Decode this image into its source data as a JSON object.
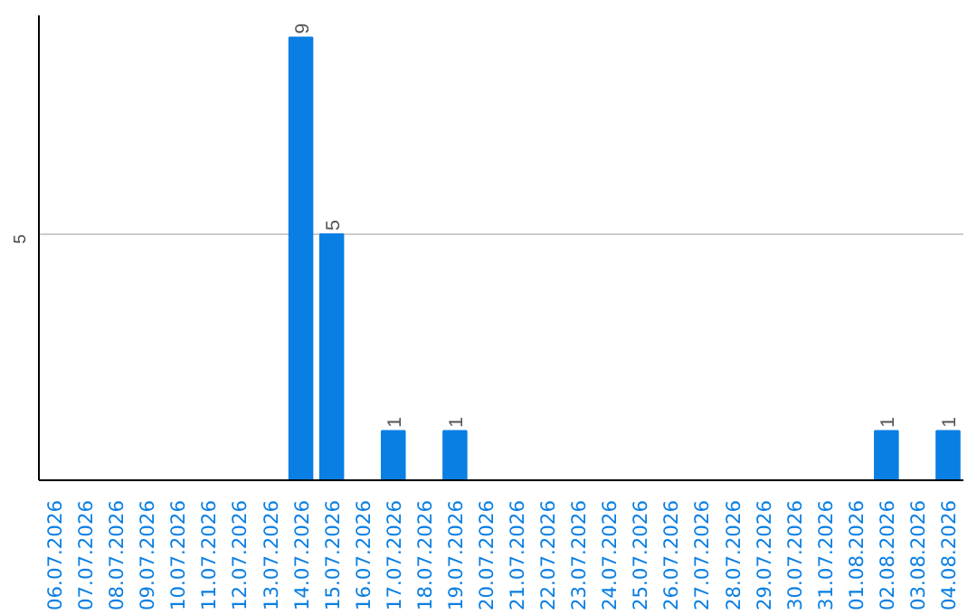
{
  "chart_data": {
    "type": "bar",
    "categories": [
      "06.07.2026",
      "07.07.2026",
      "08.07.2026",
      "09.07.2026",
      "10.07.2026",
      "11.07.2026",
      "12.07.2026",
      "13.07.2026",
      "14.07.2026",
      "15.07.2026",
      "16.07.2026",
      "17.07.2026",
      "18.07.2026",
      "19.07.2026",
      "20.07.2026",
      "21.07.2026",
      "22.07.2026",
      "23.07.2026",
      "24.07.2026",
      "25.07.2026",
      "26.07.2026",
      "27.07.2026",
      "28.07.2026",
      "29.07.2026",
      "30.07.2026",
      "31.07.2026",
      "01.08.2026",
      "02.08.2026",
      "03.08.2026",
      "04.08.2026"
    ],
    "values": [
      0,
      0,
      0,
      0,
      0,
      0,
      0,
      0,
      9,
      5,
      0,
      1,
      0,
      1,
      0,
      0,
      0,
      0,
      0,
      0,
      0,
      0,
      0,
      0,
      0,
      0,
      0,
      1,
      0,
      1
    ],
    "value_labels": [
      null,
      null,
      null,
      null,
      null,
      null,
      null,
      null,
      "9",
      "5",
      null,
      "1",
      null,
      "1",
      null,
      null,
      null,
      null,
      null,
      null,
      null,
      null,
      null,
      null,
      null,
      null,
      null,
      "1",
      null,
      "1"
    ],
    "color": "#0a7fe3",
    "ylim": [
      0,
      9.45
    ],
    "yticks": [
      5
    ],
    "grid": "y"
  }
}
